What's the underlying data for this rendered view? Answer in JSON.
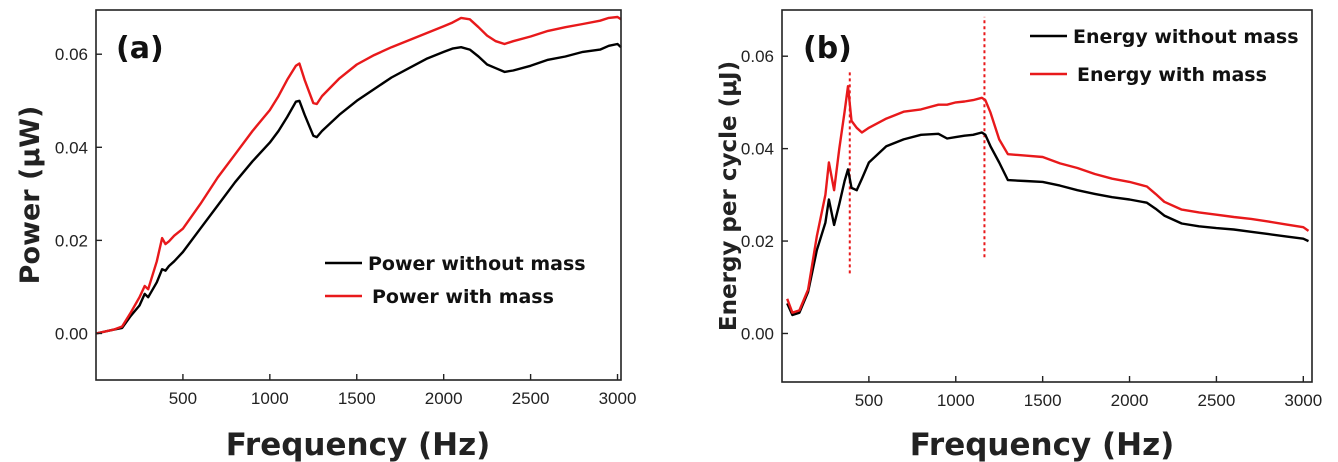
{
  "colors": {
    "without_mass": "#000000",
    "with_mass": "#e8191b",
    "marker_line": "#e8191b"
  },
  "chart_data": [
    {
      "type": "line",
      "panel_label": "(a)",
      "xlabel": "Frequency (Hz)",
      "ylabel": "Power (μW)",
      "xlim": [
        0,
        3020
      ],
      "ylim": [
        -0.01,
        0.0695
      ],
      "xticks": [
        500,
        1000,
        1500,
        2000,
        2500,
        3000
      ],
      "yticks": [
        0.0,
        0.02,
        0.04,
        0.06
      ],
      "ytick_labels": [
        "0.00",
        "0.02",
        "0.04",
        "0.06"
      ],
      "legend_position": "lower-right",
      "series": [
        {
          "name": "Power without mass",
          "color": "#000000",
          "x": [
            0,
            100,
            150,
            200,
            250,
            280,
            300,
            350,
            380,
            400,
            420,
            450,
            500,
            600,
            700,
            800,
            900,
            1000,
            1050,
            1100,
            1150,
            1170,
            1200,
            1250,
            1270,
            1300,
            1400,
            1500,
            1600,
            1700,
            1800,
            1900,
            2000,
            2050,
            2100,
            2150,
            2200,
            2250,
            2300,
            2350,
            2400,
            2500,
            2600,
            2700,
            2800,
            2900,
            2950,
            3000,
            3020
          ],
          "y": [
            0.0,
            0.0008,
            0.0012,
            0.0038,
            0.006,
            0.0085,
            0.0078,
            0.011,
            0.0138,
            0.0135,
            0.0145,
            0.0155,
            0.0175,
            0.0225,
            0.0275,
            0.0325,
            0.037,
            0.041,
            0.0435,
            0.0465,
            0.0498,
            0.05,
            0.047,
            0.0425,
            0.0422,
            0.0435,
            0.047,
            0.05,
            0.0525,
            0.055,
            0.057,
            0.059,
            0.0605,
            0.0612,
            0.0615,
            0.061,
            0.0595,
            0.0578,
            0.057,
            0.0562,
            0.0565,
            0.0575,
            0.0588,
            0.0595,
            0.0605,
            0.061,
            0.0618,
            0.0622,
            0.0615
          ]
        },
        {
          "name": "Power with mass",
          "color": "#e8191b",
          "x": [
            0,
            100,
            150,
            200,
            250,
            280,
            300,
            350,
            380,
            400,
            420,
            450,
            500,
            600,
            700,
            800,
            900,
            1000,
            1050,
            1100,
            1150,
            1170,
            1200,
            1250,
            1270,
            1300,
            1400,
            1500,
            1600,
            1700,
            1800,
            1900,
            2000,
            2050,
            2100,
            2150,
            2200,
            2250,
            2300,
            2350,
            2400,
            2500,
            2600,
            2700,
            2800,
            2900,
            2950,
            3000,
            3020
          ],
          "y": [
            0.0,
            0.0008,
            0.0015,
            0.0045,
            0.0078,
            0.0102,
            0.0095,
            0.0155,
            0.0205,
            0.0192,
            0.0198,
            0.021,
            0.0225,
            0.0278,
            0.0335,
            0.0385,
            0.0435,
            0.048,
            0.051,
            0.0545,
            0.0575,
            0.058,
            0.0545,
            0.0495,
            0.0493,
            0.051,
            0.0548,
            0.0578,
            0.0598,
            0.0615,
            0.063,
            0.0645,
            0.066,
            0.0668,
            0.0678,
            0.0675,
            0.0658,
            0.064,
            0.0628,
            0.0622,
            0.0628,
            0.0638,
            0.065,
            0.0658,
            0.0665,
            0.0672,
            0.0678,
            0.068,
            0.0675
          ]
        }
      ]
    },
    {
      "type": "line",
      "panel_label": "(b)",
      "xlabel": "Frequency (Hz)",
      "ylabel": "Energy per cycle (μJ)",
      "xlim": [
        0,
        3050
      ],
      "ylim": [
        -0.0105,
        0.07
      ],
      "xticks": [
        500,
        1000,
        1500,
        2000,
        2500,
        3000
      ],
      "yticks": [
        0.0,
        0.02,
        0.04,
        0.06
      ],
      "ytick_labels": [
        "0.00",
        "0.02",
        "0.04",
        "0.06"
      ],
      "legend_position": "top-right",
      "vlines": [
        {
          "x": 390,
          "y_from": 0.013,
          "y_to": 0.0565
        },
        {
          "x": 1165,
          "y_from": 0.0165,
          "y_to": 0.0685
        }
      ],
      "series": [
        {
          "name": "Energy without mass",
          "color": "#000000",
          "x": [
            30,
            60,
            100,
            150,
            200,
            250,
            270,
            300,
            330,
            360,
            380,
            400,
            430,
            460,
            500,
            600,
            700,
            800,
            900,
            950,
            1000,
            1050,
            1100,
            1150,
            1170,
            1200,
            1250,
            1300,
            1400,
            1500,
            1600,
            1700,
            1800,
            1900,
            2000,
            2100,
            2150,
            2200,
            2300,
            2400,
            2500,
            2600,
            2700,
            2800,
            2900,
            3000,
            3030
          ],
          "y": [
            0.0065,
            0.004,
            0.0045,
            0.009,
            0.018,
            0.024,
            0.029,
            0.0235,
            0.028,
            0.033,
            0.0355,
            0.0315,
            0.031,
            0.0335,
            0.037,
            0.0405,
            0.042,
            0.043,
            0.0432,
            0.0422,
            0.0425,
            0.0428,
            0.043,
            0.0435,
            0.043,
            0.0405,
            0.037,
            0.0332,
            0.033,
            0.0328,
            0.032,
            0.031,
            0.0302,
            0.0295,
            0.029,
            0.0283,
            0.027,
            0.0255,
            0.0238,
            0.0232,
            0.0228,
            0.0225,
            0.022,
            0.0215,
            0.021,
            0.0205,
            0.02
          ]
        },
        {
          "name": "Energy with mass",
          "color": "#e8191b",
          "x": [
            30,
            60,
            100,
            150,
            200,
            250,
            270,
            300,
            330,
            360,
            380,
            400,
            430,
            460,
            500,
            600,
            700,
            800,
            900,
            950,
            1000,
            1050,
            1100,
            1150,
            1170,
            1200,
            1250,
            1300,
            1400,
            1500,
            1600,
            1700,
            1800,
            1900,
            2000,
            2100,
            2150,
            2200,
            2300,
            2400,
            2500,
            2600,
            2700,
            2800,
            2900,
            3000,
            3030
          ],
          "y": [
            0.0075,
            0.0045,
            0.005,
            0.0095,
            0.021,
            0.03,
            0.037,
            0.031,
            0.04,
            0.048,
            0.0535,
            0.046,
            0.0445,
            0.0435,
            0.0445,
            0.0465,
            0.048,
            0.0485,
            0.0495,
            0.0495,
            0.05,
            0.0502,
            0.0505,
            0.051,
            0.0505,
            0.0478,
            0.042,
            0.0388,
            0.0385,
            0.0382,
            0.0368,
            0.0358,
            0.0345,
            0.0335,
            0.0328,
            0.0318,
            0.0302,
            0.0285,
            0.0268,
            0.0262,
            0.0257,
            0.0252,
            0.0248,
            0.0242,
            0.0236,
            0.023,
            0.0222
          ]
        }
      ]
    }
  ]
}
